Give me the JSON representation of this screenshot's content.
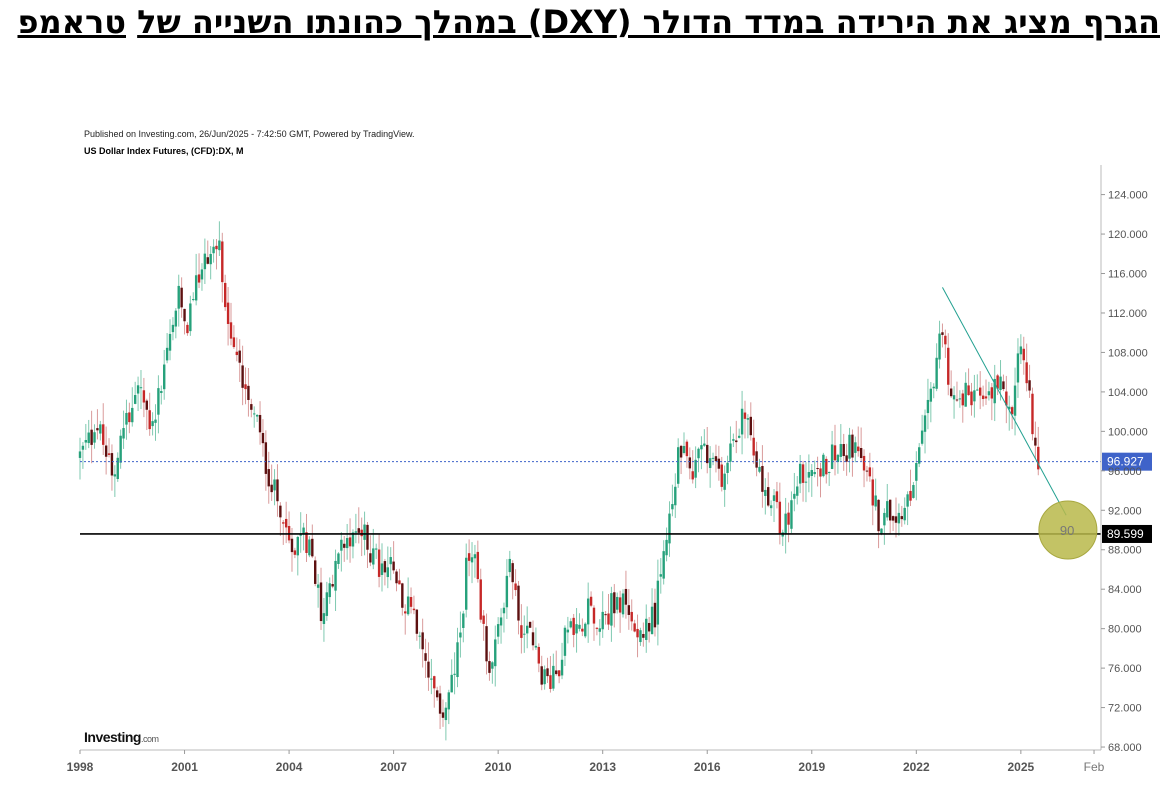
{
  "title": {
    "part1": "הגרף מציג את הירידה במדד הדולר (DXY) במהלך כהונתו השנייה של",
    "part2": "טראמפ"
  },
  "published": "Published on Investing.com, 26/Jun/2025 - 7:42:50 GMT, Powered by TradingView.",
  "symbol": "US Dollar Index Futures, (CFD):DX, M",
  "logo": {
    "main": "Investing",
    "suffix": ".com"
  },
  "colors": {
    "up": "#26a17b",
    "down": "#c62828",
    "dark_down": "#5d1010",
    "trendline": "#22a090",
    "current_line": "#3f63c9",
    "support_line": "#000000",
    "target_circle": "#b8b84a"
  },
  "chart_data": {
    "type": "candlestick",
    "interval": "monthly",
    "series_path_monthly_close": [
      [
        1998.0,
        97.5
      ],
      [
        1998.5,
        100.5
      ],
      [
        1999.0,
        96.0
      ],
      [
        1999.3,
        101.5
      ],
      [
        1999.7,
        104.5
      ],
      [
        2000.0,
        101.0
      ],
      [
        2000.3,
        104.0
      ],
      [
        2000.8,
        114.0
      ],
      [
        2001.0,
        110.0
      ],
      [
        2001.5,
        117.0
      ],
      [
        2002.0,
        119.0
      ],
      [
        2002.3,
        110.0
      ],
      [
        2002.5,
        107.0
      ],
      [
        2002.9,
        103.5
      ],
      [
        2003.2,
        98.5
      ],
      [
        2003.6,
        93.5
      ],
      [
        2003.9,
        90.5
      ],
      [
        2004.0,
        87.5
      ],
      [
        2004.3,
        90.0
      ],
      [
        2004.6,
        88.5
      ],
      [
        2004.9,
        82.0
      ],
      [
        2005.2,
        84.0
      ],
      [
        2005.6,
        89.0
      ],
      [
        2005.9,
        90.5
      ],
      [
        2006.2,
        89.0
      ],
      [
        2006.6,
        86.0
      ],
      [
        2006.9,
        86.5
      ],
      [
        2007.2,
        84.0
      ],
      [
        2007.6,
        80.5
      ],
      [
        2007.9,
        76.0
      ],
      [
        2008.2,
        72.5
      ],
      [
        2008.4,
        71.5
      ],
      [
        2008.6,
        73.0
      ],
      [
        2008.9,
        79.0
      ],
      [
        2009.1,
        87.0
      ],
      [
        2009.3,
        88.5
      ],
      [
        2009.5,
        80.5
      ],
      [
        2009.8,
        76.0
      ],
      [
        2009.9,
        77.5
      ],
      [
        2010.2,
        84.0
      ],
      [
        2010.4,
        86.5
      ],
      [
        2010.6,
        80.0
      ],
      [
        2010.9,
        79.5
      ],
      [
        2011.2,
        76.0
      ],
      [
        2011.5,
        74.5
      ],
      [
        2011.7,
        75.5
      ],
      [
        2011.9,
        79.5
      ],
      [
        2012.3,
        80.0
      ],
      [
        2012.6,
        83.0
      ],
      [
        2012.9,
        80.0
      ],
      [
        2013.2,
        82.0
      ],
      [
        2013.5,
        83.0
      ],
      [
        2013.8,
        80.5
      ],
      [
        2014.2,
        80.0
      ],
      [
        2014.5,
        81.5
      ],
      [
        2014.7,
        86.0
      ],
      [
        2015.0,
        92.0
      ],
      [
        2015.2,
        98.0
      ],
      [
        2015.5,
        96.0
      ],
      [
        2015.9,
        98.5
      ],
      [
        2016.2,
        96.0
      ],
      [
        2016.5,
        95.5
      ],
      [
        2016.9,
        101.0
      ],
      [
        2017.1,
        101.5
      ],
      [
        2017.4,
        98.0
      ],
      [
        2017.7,
        93.0
      ],
      [
        2017.9,
        93.5
      ],
      [
        2018.1,
        89.5
      ],
      [
        2018.3,
        91.5
      ],
      [
        2018.6,
        95.0
      ],
      [
        2018.9,
        96.5
      ],
      [
        2019.2,
        96.8
      ],
      [
        2019.5,
        97.0
      ],
      [
        2019.8,
        98.5
      ],
      [
        2020.0,
        98.0
      ],
      [
        2020.2,
        99.0
      ],
      [
        2020.5,
        96.0
      ],
      [
        2020.8,
        93.0
      ],
      [
        2021.0,
        90.0
      ],
      [
        2021.2,
        92.5
      ],
      [
        2021.5,
        92.0
      ],
      [
        2021.8,
        94.0
      ],
      [
        2022.0,
        96.0
      ],
      [
        2022.3,
        101.0
      ],
      [
        2022.6,
        108.0
      ],
      [
        2022.8,
        112.0
      ],
      [
        2022.9,
        106.0
      ],
      [
        2023.1,
        102.0
      ],
      [
        2023.4,
        104.0
      ],
      [
        2023.6,
        102.0
      ],
      [
        2023.8,
        105.5
      ],
      [
        2023.95,
        102.0
      ],
      [
        2024.2,
        104.5
      ],
      [
        2024.5,
        105.0
      ],
      [
        2024.7,
        101.0
      ],
      [
        2024.9,
        106.0
      ],
      [
        2025.0,
        108.5
      ],
      [
        2025.2,
        104.5
      ],
      [
        2025.4,
        99.5
      ],
      [
        2025.5,
        96.9
      ]
    ],
    "x_axis": {
      "ticks": [
        "1998",
        "2001",
        "2004",
        "2007",
        "2010",
        "2013",
        "2016",
        "2019",
        "2022",
        "2025",
        "Feb"
      ],
      "range": [
        1998,
        2027.3
      ]
    },
    "y_axis": {
      "ticks": [
        "68.000",
        "72.000",
        "76.000",
        "80.000",
        "84.000",
        "88.000",
        "92.000",
        "96.000",
        "100.000",
        "104.000",
        "108.000",
        "112.000",
        "116.000",
        "120.000",
        "124.000"
      ],
      "range": [
        67.7,
        127.0
      ]
    },
    "current_price": {
      "value": 96.927,
      "label": "96.927"
    },
    "support_level": {
      "value": 89.599,
      "label": "89.599"
    },
    "trendline": {
      "from": [
        2022.75,
        114.6
      ],
      "to": [
        2026.3,
        91.5
      ]
    },
    "target": {
      "x": 2026.35,
      "y": 90.0,
      "label": "90"
    },
    "grid": false
  }
}
